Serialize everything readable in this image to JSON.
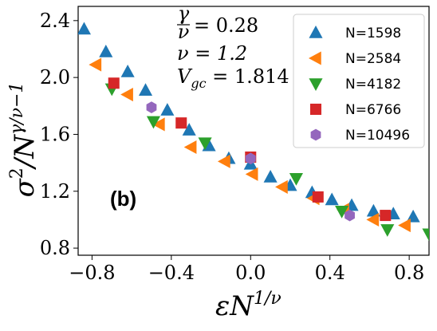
{
  "chart_data": {
    "type": "scatter",
    "xlabel_base": "εN",
    "xlabel_sup": "1/ν",
    "ylabel_base": "σ",
    "ylabel_sup1": "2",
    "ylabel_mid": "/N",
    "ylabel_sup2": "γ/ν−1",
    "xlim": [
      -0.87,
      0.9
    ],
    "ylim": [
      0.75,
      2.5
    ],
    "xticks": [
      -0.8,
      -0.4,
      0.0,
      0.4,
      0.8
    ],
    "xtick_labels": [
      "−0.8",
      "−0.4",
      "0.0",
      "0.4",
      "0.8"
    ],
    "yticks": [
      0.8,
      1.2,
      1.6,
      2.0,
      2.4
    ],
    "ytick_labels": [
      "0.8",
      "1.2",
      "1.6",
      "2.0",
      "2.4"
    ],
    "grid": false,
    "legend_position": "top-right",
    "panel_label": "(b)",
    "annotations": {
      "ratio_num": "γ",
      "ratio_den": "ν",
      "ratio_value": "= 0.28",
      "nu_line": "ν = 1.2",
      "vgc_base": "V",
      "vgc_sub": "gc",
      "vgc_value": " = 1.814"
    },
    "series": [
      {
        "name": "N=1598",
        "marker": "triangle-up",
        "color": "#1f77b4",
        "points": [
          [
            -0.84,
            2.34
          ],
          [
            -0.73,
            2.18
          ],
          [
            -0.62,
            2.04
          ],
          [
            -0.53,
            1.91
          ],
          [
            -0.42,
            1.77
          ],
          [
            -0.31,
            1.63
          ],
          [
            -0.21,
            1.52
          ],
          [
            -0.11,
            1.43
          ],
          [
            0.0,
            1.39
          ],
          [
            0.1,
            1.3
          ],
          [
            0.2,
            1.24
          ],
          [
            0.31,
            1.19
          ],
          [
            0.41,
            1.14
          ],
          [
            0.51,
            1.1
          ],
          [
            0.62,
            1.06
          ],
          [
            0.72,
            1.04
          ],
          [
            0.82,
            1.02
          ]
        ]
      },
      {
        "name": "N=2584",
        "marker": "triangle-left",
        "color": "#ff7f0e",
        "points": [
          [
            -0.78,
            2.09
          ],
          [
            -0.62,
            1.88
          ],
          [
            -0.46,
            1.67
          ],
          [
            -0.3,
            1.51
          ],
          [
            -0.13,
            1.41
          ],
          [
            0.01,
            1.32
          ],
          [
            0.16,
            1.23
          ],
          [
            0.32,
            1.15
          ],
          [
            0.47,
            1.07
          ],
          [
            0.62,
            1.0
          ],
          [
            0.78,
            0.96
          ]
        ]
      },
      {
        "name": "N=4182",
        "marker": "triangle-down",
        "color": "#2ca02c",
        "points": [
          [
            -0.7,
            1.92
          ],
          [
            -0.49,
            1.69
          ],
          [
            -0.23,
            1.54
          ],
          [
            0.23,
            1.29
          ],
          [
            0.46,
            1.06
          ],
          [
            0.69,
            0.93
          ],
          [
            0.9,
            0.9
          ]
        ]
      },
      {
        "name": "N=6766",
        "marker": "square",
        "color": "#d62728",
        "points": [
          [
            -0.69,
            1.96
          ],
          [
            -0.35,
            1.68
          ],
          [
            0.0,
            1.44
          ],
          [
            0.34,
            1.16
          ],
          [
            0.68,
            1.03
          ]
        ]
      },
      {
        "name": "N=10496",
        "marker": "hexagon",
        "color": "#9467bd",
        "points": [
          [
            -0.5,
            1.79
          ],
          [
            0.0,
            1.43
          ],
          [
            0.5,
            1.03
          ]
        ]
      }
    ]
  }
}
